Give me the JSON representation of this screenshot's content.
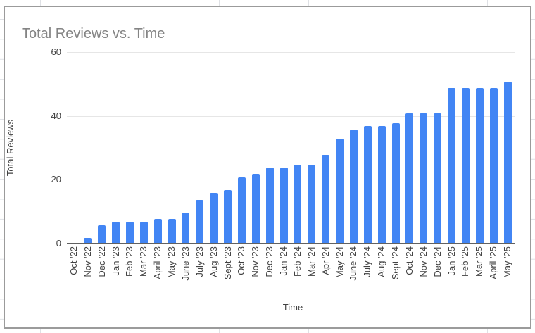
{
  "chart_data": {
    "type": "bar",
    "title": "Total Reviews vs. Time",
    "xlabel": "Time",
    "ylabel": "Total Reviews",
    "categories": [
      "Oct '22",
      "Nov '22",
      "Dec '22",
      "Jan '23",
      "Feb '23",
      "Mar '23",
      "April '23",
      "May '23",
      "June '23",
      "July '23",
      "Aug '23",
      "Sept '23",
      "Oct '23",
      "Nov '23",
      "Dec '23",
      "Jan '24",
      "Feb '24",
      "Mar '24",
      "Apr '24",
      "May '24",
      "June '24",
      "July '24",
      "Aug '24",
      "Sept '24",
      "Oct '24",
      "Nov '24",
      "Dec '24",
      "Jan '25",
      "Feb '25",
      "Mar '25",
      "April '25",
      "May '25"
    ],
    "values": [
      0,
      2,
      6,
      7,
      7,
      7,
      8,
      8,
      10,
      14,
      16,
      17,
      21,
      22,
      24,
      24,
      25,
      25,
      28,
      33,
      36,
      37,
      37,
      38,
      41,
      41,
      41,
      49,
      49,
      49,
      49,
      51
    ],
    "ylim": [
      0,
      60
    ],
    "yticks": [
      0,
      20,
      40,
      60
    ],
    "grid": true,
    "legend": "none",
    "bar_color": "#4285f4"
  },
  "colors": {
    "bar": "#4285f4",
    "title_text": "#848484",
    "axis_text": "#424242",
    "gridline": "#e6e6e6",
    "axis_line": "#616161",
    "card_border": "#9b9b9b",
    "sheet_gridline": "#dfe1e5"
  }
}
